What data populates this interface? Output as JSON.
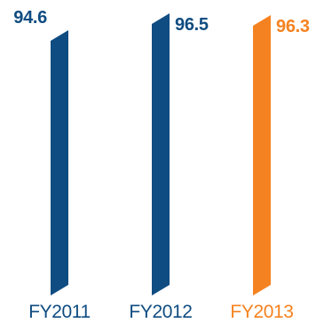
{
  "chart_data": {
    "type": "bar",
    "categories": [
      "FY2011",
      "FY2012",
      "FY2013"
    ],
    "values": [
      94.6,
      96.5,
      96.3
    ],
    "value_labels": [
      "94.6",
      "96.5",
      "96.3"
    ],
    "title": "",
    "xlabel": "",
    "ylabel": "",
    "colors": [
      "#0f4c81",
      "#0f4c81",
      "#f58220"
    ],
    "label_colors": [
      "#0f4c81",
      "#0f4c81",
      "#f58220"
    ]
  }
}
